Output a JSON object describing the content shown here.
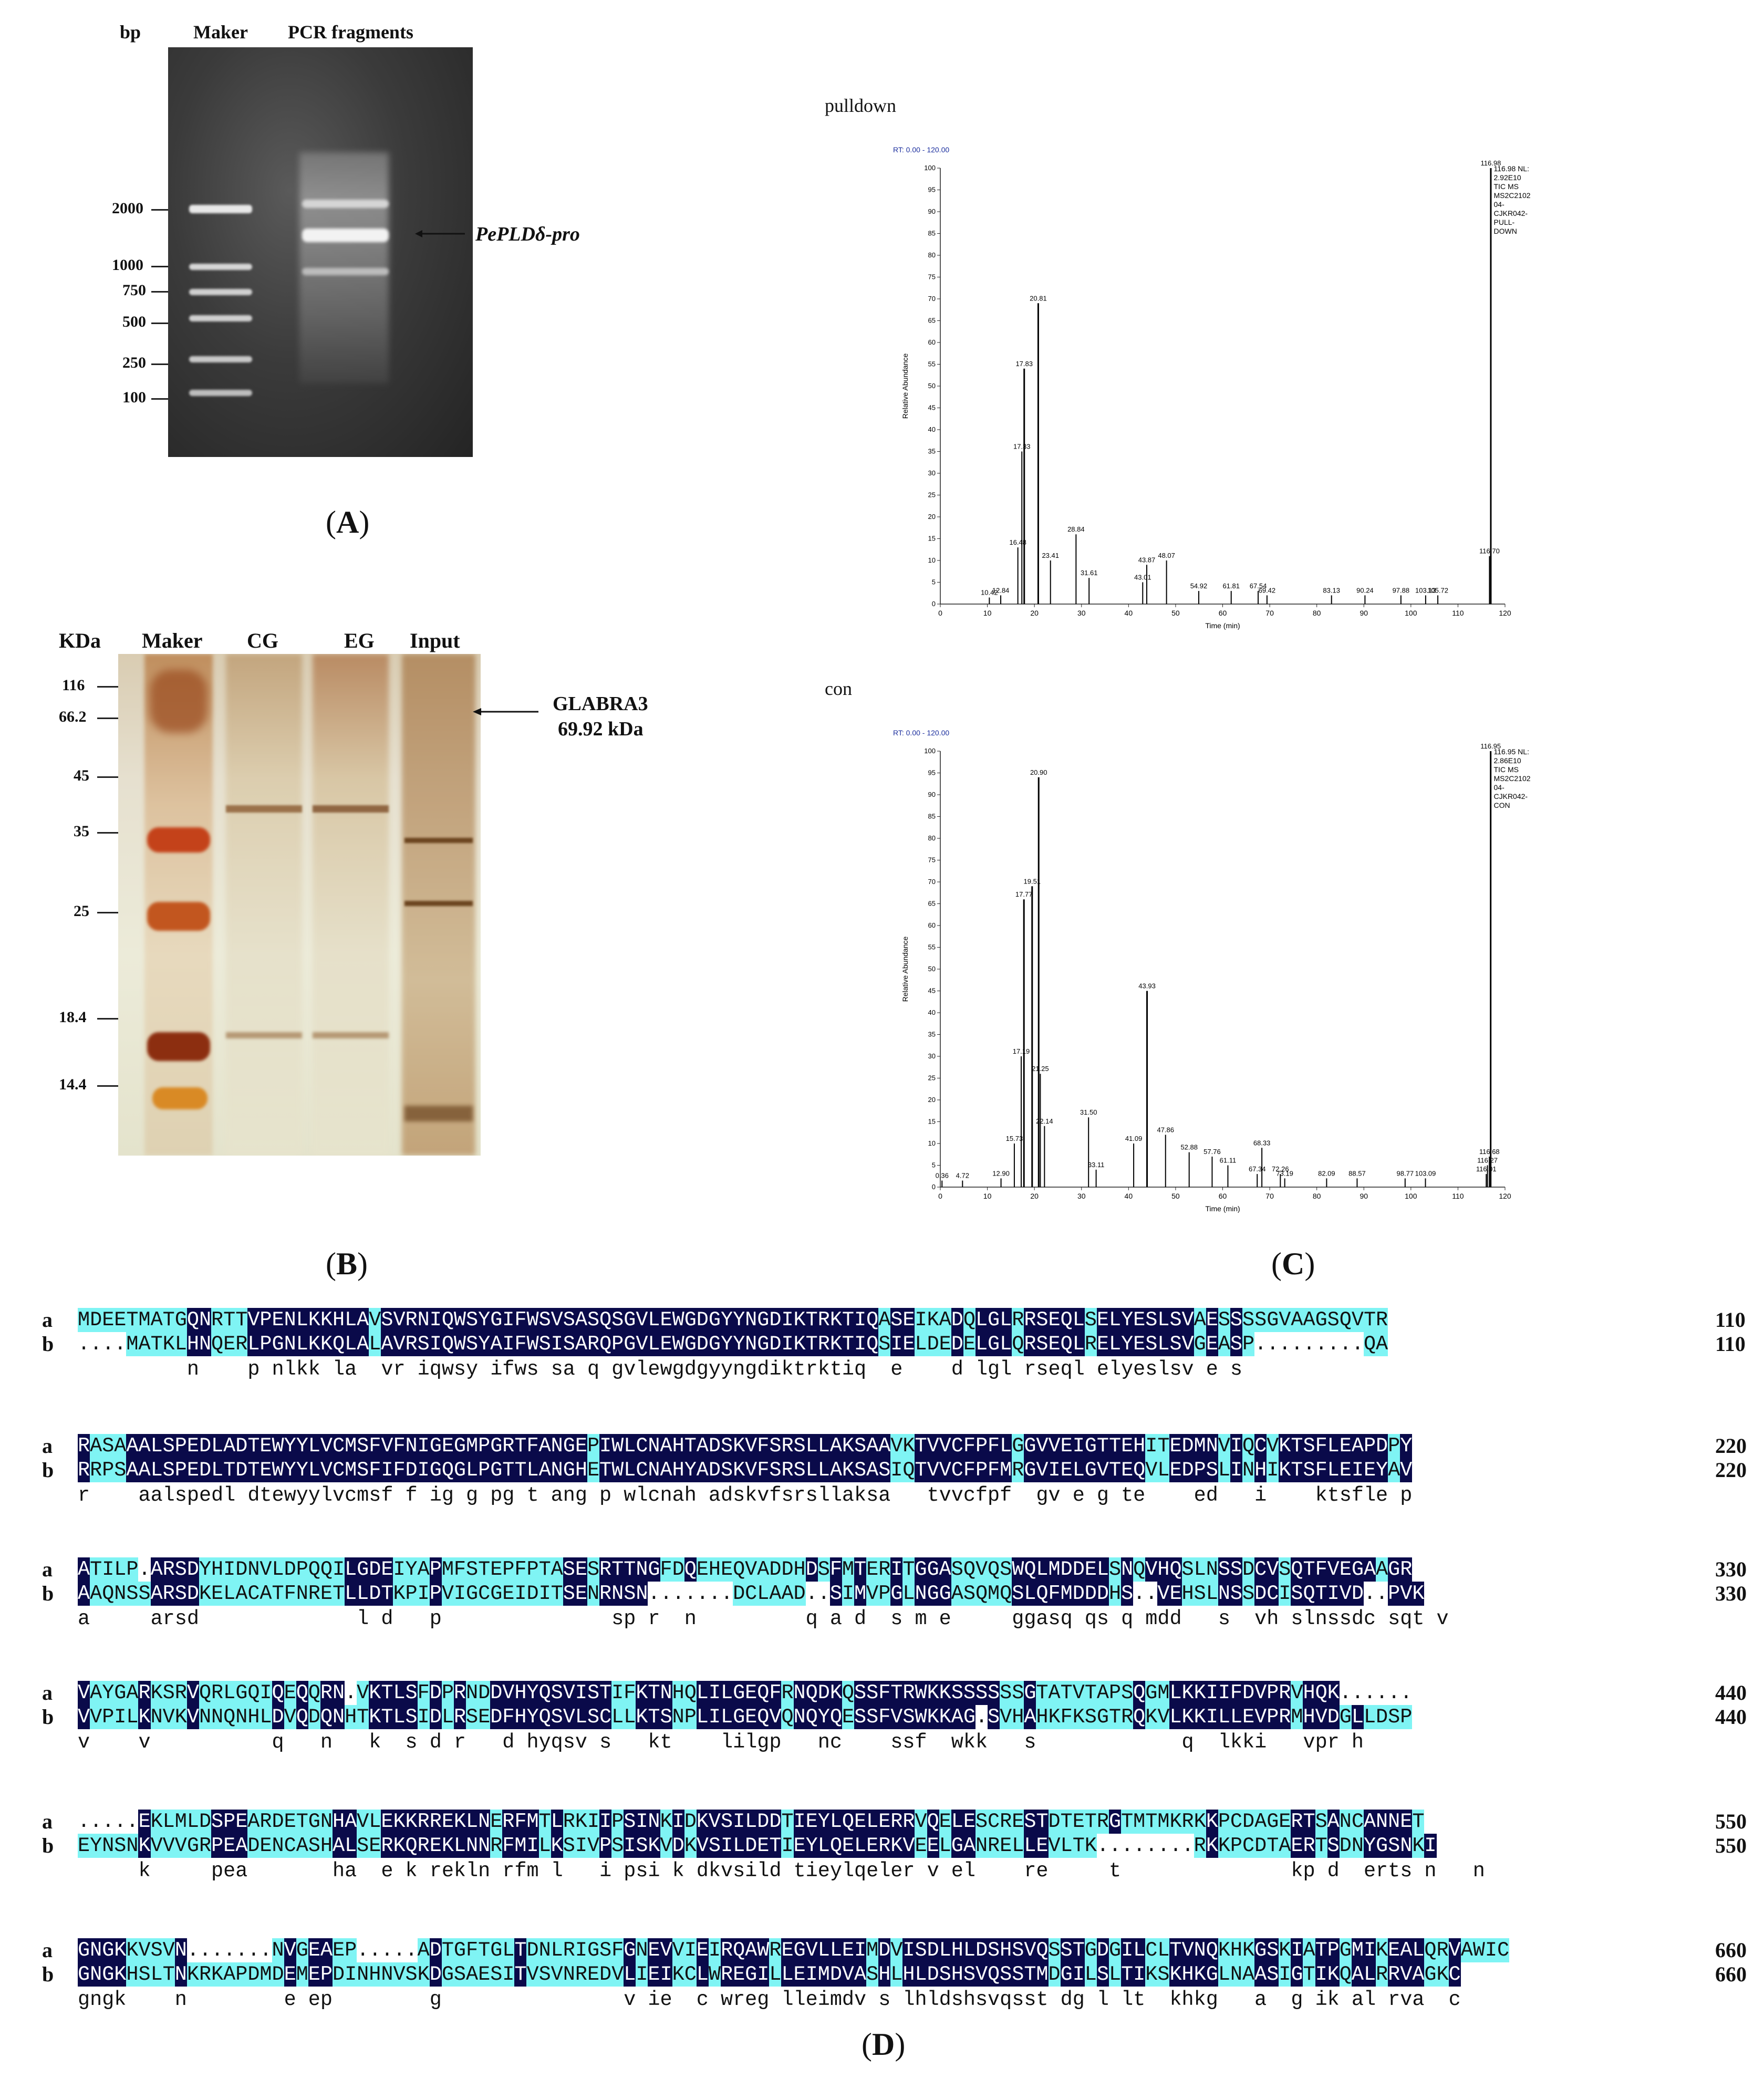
{
  "panelA": {
    "header_bp": "bp",
    "header_maker": "Maker",
    "header_pcr": "PCR fragments",
    "markers": [
      "2000",
      "1000",
      "750",
      "500",
      "250",
      "100"
    ],
    "band_label": "PePLDδ-pro",
    "caption_letter": "A"
  },
  "panelB": {
    "header_kda": "KDa",
    "header_maker": "Maker",
    "header_cg": "CG",
    "header_eg": "EG",
    "header_input": "Input",
    "markers": [
      "116",
      "66.2",
      "45",
      "35",
      "25",
      "18.4",
      "14.4"
    ],
    "band_label_1": "GLABRA3",
    "band_label_2": "69.92 kDa",
    "caption_letter": "B"
  },
  "panelC": {
    "caption_letter": "C",
    "charts": [
      {
        "label": "pulldown",
        "rt": "RT: 0.00 - 120.00",
        "ylabel": "Relative Abundance",
        "xlabel": "Time (min)",
        "info": [
          "116.98 NL:",
          "2.92E10",
          "TIC MS",
          "MS2C2102",
          "04-",
          "CJKR042-",
          "PULL-",
          "DOWN"
        ],
        "xticks": [
          "0",
          "10",
          "20",
          "30",
          "40",
          "50",
          "60",
          "70",
          "80",
          "90",
          "100",
          "110",
          "120"
        ],
        "yticks": [
          "0",
          "5",
          "10",
          "15",
          "20",
          "25",
          "30",
          "35",
          "40",
          "45",
          "50",
          "55",
          "60",
          "65",
          "70",
          "75",
          "80",
          "85",
          "90",
          "95",
          "100"
        ]
      },
      {
        "label": "con",
        "rt": "RT: 0.00 - 120.00",
        "ylabel": "Relative Abundance",
        "xlabel": "Time (min)",
        "info": [
          "116.95 NL:",
          "2.86E10",
          "TIC MS",
          "MS2C2102",
          "04-",
          "CJKR042-",
          "CON"
        ],
        "xticks": [
          "0",
          "10",
          "20",
          "30",
          "40",
          "50",
          "60",
          "70",
          "80",
          "90",
          "100",
          "110",
          "120"
        ],
        "yticks": [
          "0",
          "5",
          "10",
          "15",
          "20",
          "25",
          "30",
          "35",
          "40",
          "45",
          "50",
          "55",
          "60",
          "65",
          "70",
          "75",
          "80",
          "85",
          "90",
          "95",
          "100"
        ]
      }
    ]
  },
  "chart_data": [
    {
      "type": "line",
      "title": "pulldown",
      "xlabel": "Time (min)",
      "ylabel": "Relative Abundance",
      "xlim": [
        0,
        120
      ],
      "ylim": [
        0,
        100
      ],
      "peaks": [
        {
          "x": 10.42,
          "y": 1.5,
          "label": "10.42"
        },
        {
          "x": 12.84,
          "y": 2,
          "label": "12.84"
        },
        {
          "x": 16.48,
          "y": 13,
          "label": "16.48"
        },
        {
          "x": 17.33,
          "y": 35,
          "label": "17.33"
        },
        {
          "x": 17.83,
          "y": 54,
          "label": "17.83"
        },
        {
          "x": 20.81,
          "y": 69,
          "label": "20.81"
        },
        {
          "x": 23.41,
          "y": 10,
          "label": "23.41"
        },
        {
          "x": 28.84,
          "y": 16,
          "label": "28.84"
        },
        {
          "x": 31.61,
          "y": 6,
          "label": "31.61"
        },
        {
          "x": 43.01,
          "y": 5,
          "label": "43.01"
        },
        {
          "x": 43.87,
          "y": 9,
          "label": "43.87"
        },
        {
          "x": 48.07,
          "y": 10,
          "label": "48.07"
        },
        {
          "x": 54.92,
          "y": 3,
          "label": "54.92"
        },
        {
          "x": 61.81,
          "y": 3,
          "label": "61.81"
        },
        {
          "x": 67.54,
          "y": 3,
          "label": "67.54"
        },
        {
          "x": 69.42,
          "y": 2,
          "label": "69.42"
        },
        {
          "x": 83.13,
          "y": 2,
          "label": "83.13"
        },
        {
          "x": 90.24,
          "y": 2,
          "label": "90.24"
        },
        {
          "x": 97.88,
          "y": 2,
          "label": "97.88"
        },
        {
          "x": 103.13,
          "y": 2,
          "label": "103.13"
        },
        {
          "x": 105.72,
          "y": 2,
          "label": "105.72"
        },
        {
          "x": 116.7,
          "y": 11,
          "label": "116.70"
        },
        {
          "x": 116.98,
          "y": 100,
          "label": "116.98"
        }
      ]
    },
    {
      "type": "line",
      "title": "con",
      "xlabel": "Time (min)",
      "ylabel": "Relative Abundance",
      "xlim": [
        0,
        120
      ],
      "ylim": [
        0,
        100
      ],
      "peaks": [
        {
          "x": 0.36,
          "y": 1.5,
          "label": "0.36"
        },
        {
          "x": 4.72,
          "y": 1.5,
          "label": "4.72"
        },
        {
          "x": 12.9,
          "y": 2,
          "label": "12.90"
        },
        {
          "x": 15.73,
          "y": 10,
          "label": "15.73"
        },
        {
          "x": 17.19,
          "y": 30,
          "label": "17.19"
        },
        {
          "x": 17.77,
          "y": 66,
          "label": "17.77"
        },
        {
          "x": 19.51,
          "y": 69,
          "label": "19.51"
        },
        {
          "x": 20.9,
          "y": 94,
          "label": "20.90"
        },
        {
          "x": 21.25,
          "y": 26,
          "label": "21.25"
        },
        {
          "x": 22.14,
          "y": 14,
          "label": "22.14"
        },
        {
          "x": 31.5,
          "y": 16,
          "label": "31.50"
        },
        {
          "x": 33.11,
          "y": 4,
          "label": "33.11"
        },
        {
          "x": 41.09,
          "y": 10,
          "label": "41.09"
        },
        {
          "x": 43.93,
          "y": 45,
          "label": "43.93"
        },
        {
          "x": 47.86,
          "y": 12,
          "label": "47.86"
        },
        {
          "x": 52.88,
          "y": 8,
          "label": "52.88"
        },
        {
          "x": 57.76,
          "y": 7,
          "label": "57.76"
        },
        {
          "x": 61.11,
          "y": 5,
          "label": "61.11"
        },
        {
          "x": 67.34,
          "y": 3,
          "label": "67.34"
        },
        {
          "x": 68.33,
          "y": 9,
          "label": "68.33"
        },
        {
          "x": 72.26,
          "y": 3,
          "label": "72.26"
        },
        {
          "x": 73.19,
          "y": 2,
          "label": "73.19"
        },
        {
          "x": 82.09,
          "y": 2,
          "label": "82.09"
        },
        {
          "x": 88.57,
          "y": 2,
          "label": "88.57"
        },
        {
          "x": 98.77,
          "y": 2,
          "label": "98.77"
        },
        {
          "x": 103.09,
          "y": 2,
          "label": "103.09"
        },
        {
          "x": 116.01,
          "y": 3,
          "label": "116.01"
        },
        {
          "x": 116.27,
          "y": 5,
          "label": "116.27"
        },
        {
          "x": 116.68,
          "y": 7,
          "label": "116.68"
        },
        {
          "x": 116.95,
          "y": 100,
          "label": "116.95"
        }
      ]
    }
  ],
  "panelD": {
    "caption_letter": "D",
    "blocks": [
      {
        "a": "MDEETMATGQNRTTVPENLKKHLAVSVRNIQWSYGIFWSVSASQSGVLEWGDGYYNGDIKTRKTIQASEIKADQLGLRRSEQLSELYESLSVAESSSSGVAAGSQVTR",
        "b": "....MATKLHNQERLPGNLKKQLALAVRSIQWSYAIFWSISARQPGVLEWGDGYYNGDIKTRKTIQSIELDEDELGLQRSEQLRELYESLSVGEASP.........QA",
        "c": "         n    p nlkk la  vr iqwsy ifws sa q gvlewgdgyyngdiktrktiq  e    d lgl rseql elyeslsv e s",
        "num": "110"
      },
      {
        "a": "RASAAALSPEDLADTEWYYLVCMSFVFNIGEGMPGRTFANGEPIWLCNAHTADSKVFSRSLLAKSAAVKTVVCFPFLGGVVEIGTTEHITEDMNVIQCVKTSFLEAPDPY",
        "b": "RRPSAALSPEDLTDTEWYYLVCMSFIFDIGQGLPGTTLANGHETWLCNAHYADSKVFSRSLLAKSASIQTVVCFPFMRGVIELGVTEQVLEDPSLINHIKTSFLEIEYAV",
        "c": "r    aalspedl dtewyylvcmsf f ig g pg t ang p wlcnah adskvfsrsllaksa   tvvcfpf  gv e g te    ed   i    ktsfle p",
        "num": "220"
      },
      {
        "a": "ATILP.ARSDYHIDNVLDPQQILGDEIYAPMFSTEPFPTASESRTTNGFDQEHEQVADDHDSFMTERITGGASQVQSWQLMDDELSNQVHQSLNSSDCVSQTFVEGAAGR",
        "b": "AAQNSSARSDKELACATFNRETLLDTKPIPVIGCGEIDITSENRNSN.......DCLAAD..SIMVPGLNGGASQMQSLQFMDDDHS..VEHSLNSSDCISQTIVD..PVK",
        "c": "a     arsd             l d   p              sp r  n         q a d  s m e     ggasq qs q mdd   s  vh slnssdc sqt v",
        "num": "330"
      },
      {
        "a": "VAYGARKSRVQRLGQIQEQQRN.VKTLSFDPRNDDVHYQSVISTIFKTNHQLILGEQFRNQDKQSSFTRWKKSSSSSSGTATVTAPSQGMLKKIIFDVPRVHQK......",
        "b": "VVPILKNVKVNNQNHLDVQDQNHTKTLSIDLRSEDFHYQSVLSCLLKTSNPLILGEQVQNQYQESSFVSWKKAG.SVHAHKFKSGTRQKVLKKILLEVPRMHVDGLLDSP",
        "c": "v    v          q   n   k  s d r   d hyqsv s   kt    lilgp   nc    ssf  wkk   s            q  lkki   vpr h",
        "num": "440"
      },
      {
        "a": ".....EKLMLDSPEARDETGNHAVLEKKRREKLNERFMTLRKIIPSINKIDKVSILDDTIEYLQELERRVQELESCRESTDTETRGTMTMKRKKPCDAGERTSANCANNET",
        "b": "EYNSNKVVVGRPEADENCASHALSERKQREKLNNRFMILKSIVPSISKVDKVSILDETIEYLQELERKVEELGANRELLEVLTK........RKKPCDTAERTSDNYGSNKI",
        "c": "     k     pea       ha  e k rekln rfm l   i psi k dkvsild tieylqeler v el    re     t              kp d  erts n   n",
        "num": "550"
      },
      {
        "a": "GNGKKVSVN.......NVGEAEP.....ADTGFTGLTDNLRIGSFGNEVVIEIRQAWREGVLLEIMDVISDLHLDSHSVQSSTGDGILCLTVNQKHKGSKIATPGMIKEALQRVAWIC",
        "b": "GNGKHSLTNKRKAPDMDEMEPDINHNVSKDGSAESITVSVNREDVLIEIKCLWREGILLEIMDVASHLHLDSHSVQSSTMDGILSLTIKSKHKGLNAASIGTIKQALRRVAGKC",
        "c": "gngk    n        e ep        g               v ie  c wreg lleimdv s lhldshsvqsst dg l lt  khkg   a  g ik al rva  c",
        "num": "660"
      }
    ]
  }
}
